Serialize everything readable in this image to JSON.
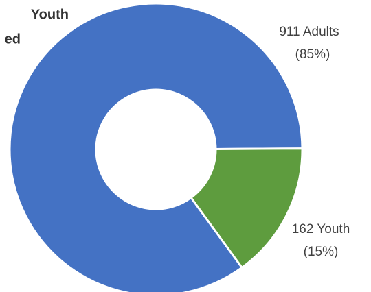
{
  "chart_data": {
    "type": "donut",
    "title_lines": [
      "Youth",
      "ed"
    ],
    "categories": [
      "Adults",
      "Youth"
    ],
    "values": [
      911,
      162
    ],
    "value_labels": [
      "911 Adults",
      "162 Youth"
    ],
    "percent_labels": [
      "(85%)",
      "(15%)"
    ],
    "colors": [
      "#4472c4",
      "#5e9c3e"
    ]
  }
}
